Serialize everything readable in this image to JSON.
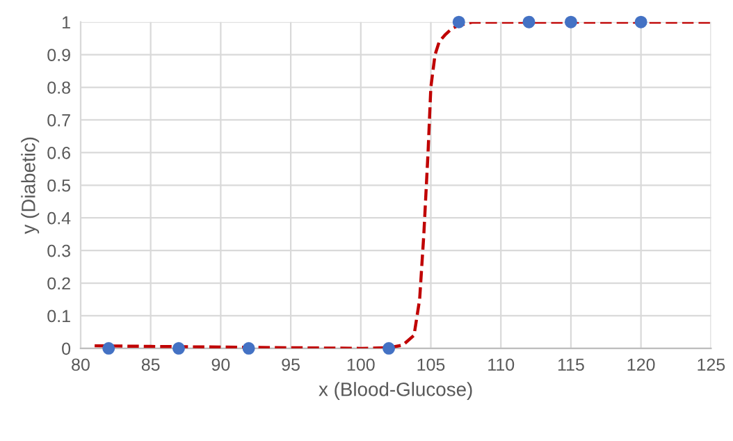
{
  "chart_data": {
    "type": "scatter",
    "xlabel": "x (Blood-Glucose)",
    "ylabel": "y (Diabetic)",
    "series": [
      {
        "color": "#4472c4",
        "marker": "circle",
        "x": [
          82,
          87,
          92,
          102,
          107,
          112,
          115,
          120
        ],
        "values": [
          0,
          0,
          0,
          0,
          1,
          1,
          1,
          1
        ]
      },
      {
        "type": "line",
        "color": "#c00000",
        "line_style": "dashed",
        "marker": "none",
        "x": [
          81,
          85,
          90,
          95,
          100,
          102,
          103,
          103.8,
          104.2,
          104.5,
          104.8,
          105,
          105.3,
          105.6,
          106,
          106.5,
          107,
          108,
          110,
          115,
          120,
          125
        ],
        "values": [
          0.008,
          0.006,
          0.004,
          0.002,
          0.0,
          0.002,
          0.01,
          0.04,
          0.15,
          0.35,
          0.6,
          0.8,
          0.9,
          0.94,
          0.96,
          0.98,
          0.99,
          1.0,
          1.0,
          1.0,
          1.0,
          1.0
        ]
      }
    ],
    "xlim": [
      80,
      125
    ],
    "xticks": [
      80,
      85,
      90,
      95,
      100,
      105,
      110,
      115,
      120,
      125
    ],
    "ylim": [
      0,
      1
    ],
    "yticks": [
      0,
      0.1,
      0.2,
      0.3,
      0.4,
      0.5,
      0.6,
      0.7,
      0.8,
      0.9,
      1
    ],
    "grid": true
  }
}
